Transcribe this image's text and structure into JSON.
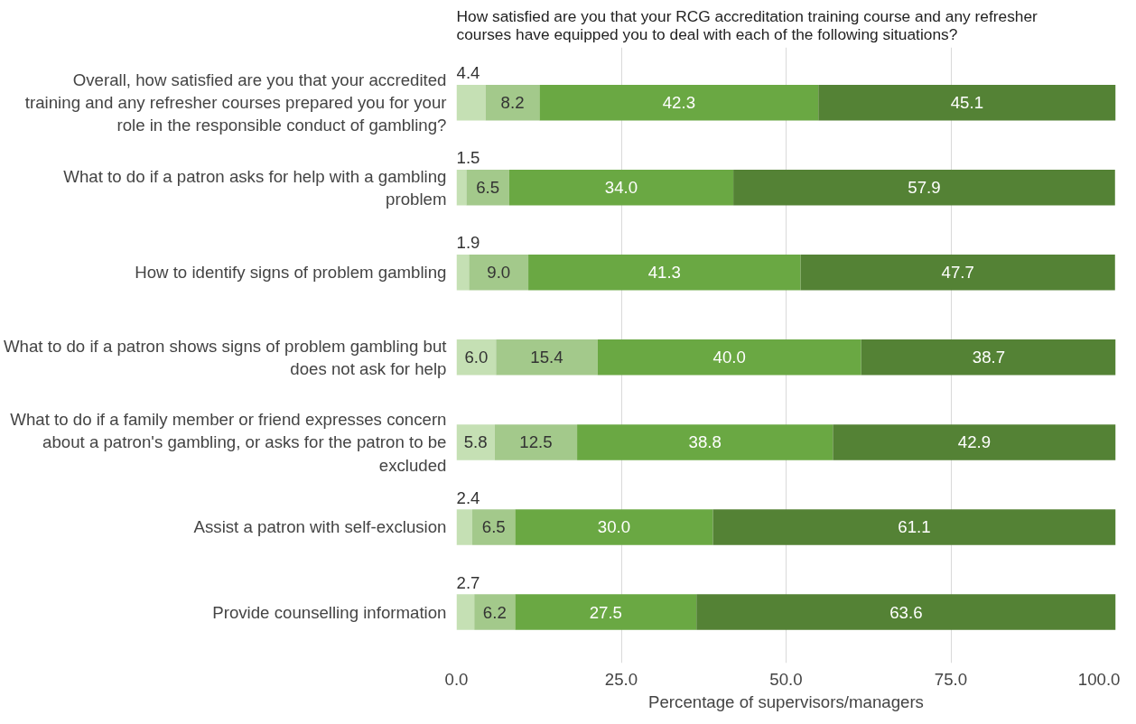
{
  "chart_data": {
    "type": "bar",
    "orientation": "horizontal",
    "stacked": true,
    "title": "How satisfied are you that your RCG accreditation training course and any refresher courses have equipped you to deal with each of the following situations?",
    "xlabel": "Percentage of supervisors/managers",
    "categories": [
      "Overall, how satisfied are you that your accredited training and any refresher courses prepared you for your role in the responsible conduct of gambling?",
      "What to do if a patron asks for help with a gambling problem",
      "How to identify signs of problem gambling",
      "What to do if a patron shows signs of problem gambling but does not ask for help",
      "What to do if a family member or friend expresses concern about a patron's gambling, or asks for the patron to be excluded",
      "Assist a patron with self-exclusion",
      "Provide counselling information"
    ],
    "series": [
      {
        "color": "#c5e0b4",
        "values": [
          4.4,
          1.5,
          1.9,
          6.0,
          5.8,
          2.4,
          2.7
        ],
        "value_labels": [
          "4.4",
          "1.5",
          "1.9",
          "6.0",
          "5.8",
          "2.4",
          "2.7"
        ]
      },
      {
        "color": "#a3c98b",
        "values": [
          8.2,
          6.5,
          9.0,
          15.4,
          12.5,
          6.5,
          6.2
        ],
        "value_labels": [
          "8.2",
          "6.5",
          "9.0",
          "15.4",
          "12.5",
          "6.5",
          "6.2"
        ]
      },
      {
        "color": "#6aa843",
        "values": [
          42.3,
          34.0,
          41.3,
          40.0,
          38.8,
          30.0,
          27.5
        ],
        "value_labels": [
          "42.3",
          "34.0",
          "41.3",
          "40.0",
          "38.8",
          "30.0",
          "27.5"
        ]
      },
      {
        "color": "#548235",
        "values": [
          45.1,
          57.9,
          47.7,
          38.7,
          42.9,
          61.1,
          63.6
        ],
        "value_labels": [
          "45.1",
          "57.9",
          "47.7",
          "38.7",
          "42.9",
          "61.1",
          "63.6"
        ]
      }
    ],
    "xlim": [
      0,
      100
    ],
    "xticks": [
      {
        "value": 0,
        "label": "0.0"
      },
      {
        "value": 25,
        "label": "25.0"
      },
      {
        "value": 50,
        "label": "50.0"
      },
      {
        "value": 75,
        "label": "75.0"
      },
      {
        "value": 100,
        "label": "100.0"
      }
    ],
    "grid": "x"
  }
}
